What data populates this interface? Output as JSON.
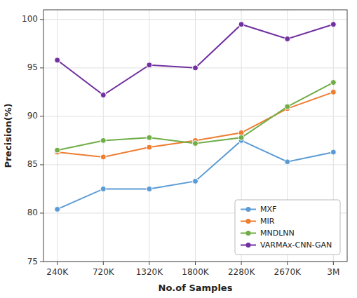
{
  "chart_data": {
    "type": "line",
    "xlabel": "No.of Samples",
    "ylabel": "Precision(%)",
    "categories": [
      "240K",
      "720K",
      "1320K",
      "1800K",
      "2280K",
      "2670K",
      "3M"
    ],
    "series": [
      {
        "name": "MXF",
        "color": "#5B9BD5",
        "marker": "circle",
        "values": [
          80.4,
          82.5,
          82.5,
          83.3,
          87.5,
          85.3,
          86.3
        ]
      },
      {
        "name": "MIR",
        "color": "#ED7D31",
        "marker": "circle",
        "values": [
          86.3,
          85.8,
          86.8,
          87.5,
          88.3,
          90.8,
          92.5
        ]
      },
      {
        "name": "MNDLNN",
        "color": "#70AD47",
        "marker": "circle",
        "values": [
          86.5,
          87.5,
          87.8,
          87.2,
          87.8,
          91.0,
          93.5
        ]
      },
      {
        "name": "VARMAx-CNN-GAN",
        "color": "#7030A0",
        "marker": "circle",
        "values": [
          95.8,
          92.2,
          95.3,
          95.0,
          99.5,
          98.0,
          99.5
        ]
      }
    ],
    "ylim": [
      75,
      101
    ],
    "yticks": [
      75,
      80,
      85,
      90,
      95,
      100
    ],
    "grid": true,
    "legend": "lower right"
  }
}
